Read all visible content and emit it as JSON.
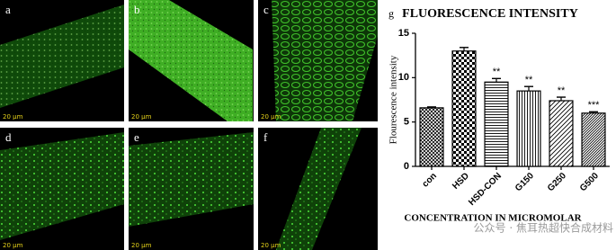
{
  "panels": [
    {
      "label": "a",
      "scale": "20 μm"
    },
    {
      "label": "b",
      "scale": "20 μm"
    },
    {
      "label": "c",
      "scale": "20 μm"
    },
    {
      "label": "d",
      "scale": "20 μm"
    },
    {
      "label": "e",
      "scale": "20 μm"
    },
    {
      "label": "f",
      "scale": "20 μm"
    }
  ],
  "watermark": "公众号 · 焦耳热超快合成材料",
  "chart_data": {
    "type": "bar",
    "panel_label": "g",
    "title": "FLUORESCENCE INTENSITY",
    "y_label": "Flourescence intensity",
    "x_label": "CONCENTRATION IN MICROMOLAR",
    "categories": [
      "con",
      "HSD",
      "HSD-CON",
      "G150",
      "G250",
      "G500"
    ],
    "values": [
      6.6,
      13.0,
      9.5,
      8.5,
      7.4,
      6.0
    ],
    "errors": [
      0.1,
      0.4,
      0.4,
      0.5,
      0.4,
      0.15
    ],
    "annotations": [
      null,
      null,
      "**",
      "**",
      "**",
      "***"
    ],
    "patterns": [
      "crosshatch",
      "checker",
      "horizontal",
      "vertical",
      "diagonal",
      "diagonal-dense"
    ],
    "color": "#000000",
    "ylim": [
      0,
      15
    ],
    "yticks": [
      0,
      5,
      10,
      15
    ]
  }
}
